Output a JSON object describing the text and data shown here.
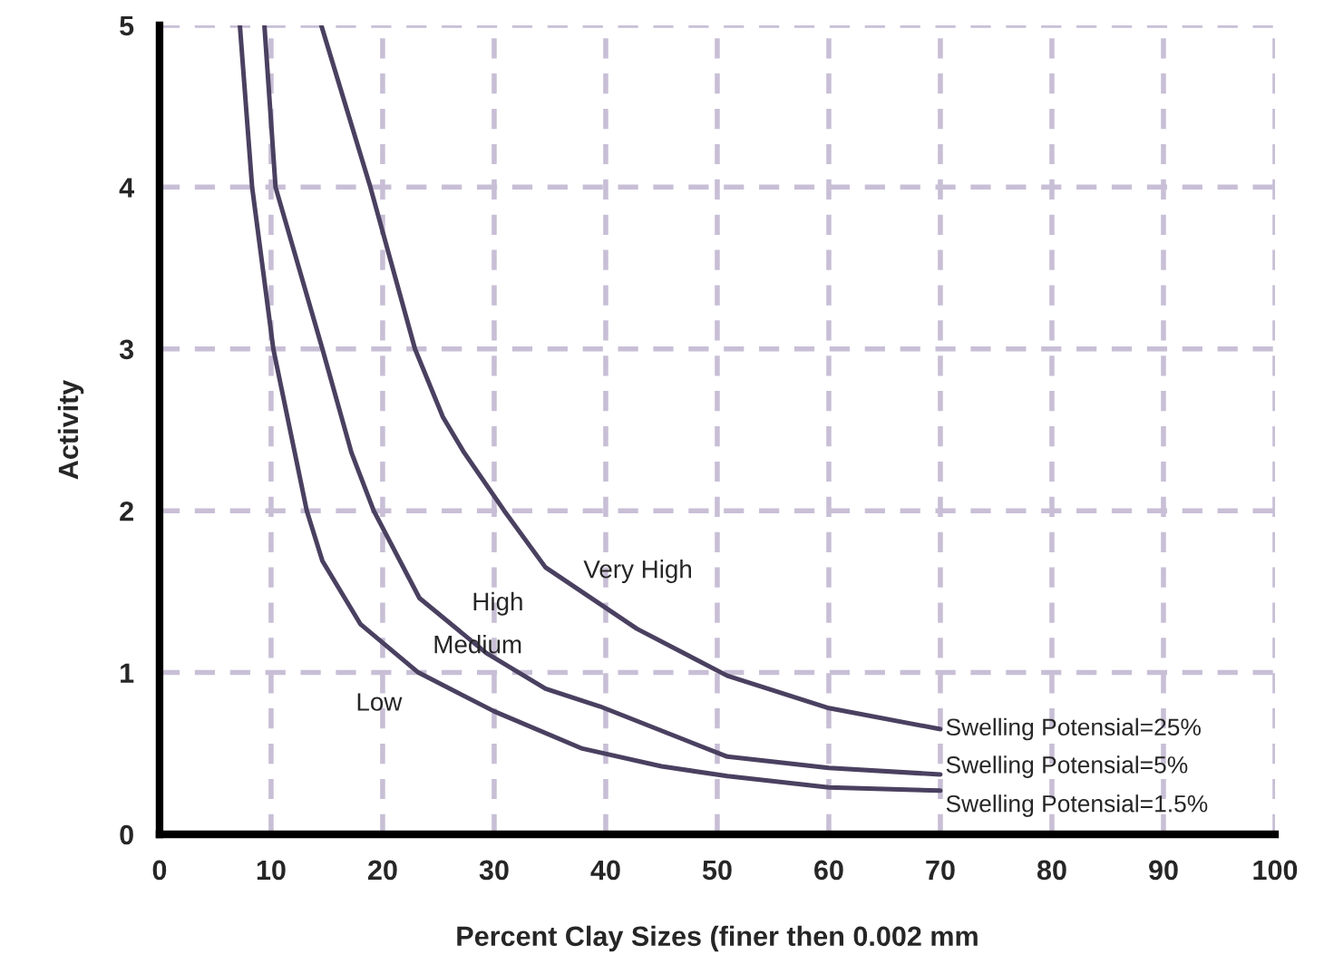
{
  "chart_data": {
    "type": "line",
    "xlabel": "Percent Clay Sizes (finer then 0.002 mm",
    "ylabel": "Activity",
    "xlim": [
      0,
      100
    ],
    "ylim": [
      0,
      5
    ],
    "xticks": [
      0,
      10,
      20,
      30,
      40,
      50,
      60,
      70,
      80,
      90,
      100
    ],
    "yticks": [
      0,
      1,
      2,
      3,
      4,
      5
    ],
    "grid": true,
    "line_style": "solid",
    "marker": "none",
    "legend": false,
    "series": [
      {
        "name": "Swelling Potensial=25%",
        "color": "#4a4060",
        "x": [
          14.5,
          18.9,
          22.9,
          25.4,
          27.3,
          30.9,
          34.6,
          42.8,
          50.9,
          60,
          70
        ],
        "values": [
          5,
          4,
          3,
          2.58,
          2.36,
          2,
          1.65,
          1.27,
          0.98,
          0.78,
          0.65
        ]
      },
      {
        "name": "Swelling Potensial=5%",
        "color": "#4a4060",
        "x": [
          9.4,
          10.4,
          14.6,
          17.2,
          19.2,
          23.3,
          29.3,
          34.6,
          39.5,
          50.9,
          60,
          70
        ],
        "values": [
          5,
          4,
          3,
          2.36,
          2,
          1.46,
          1.12,
          0.9,
          0.79,
          0.48,
          0.41,
          0.37
        ]
      },
      {
        "name": "Swelling Potensial=1.5%",
        "color": "#4a4060",
        "x": [
          7.2,
          8.3,
          10.2,
          13.2,
          14.6,
          18,
          23.2,
          30,
          37.9,
          45,
          50.9,
          60,
          70
        ],
        "values": [
          5,
          4,
          3,
          2,
          1.69,
          1.3,
          1.0,
          0.76,
          0.53,
          0.42,
          0.36,
          0.29,
          0.27
        ]
      }
    ],
    "annotations": [
      "Very High",
      "High",
      "Medium",
      "Low"
    ]
  }
}
